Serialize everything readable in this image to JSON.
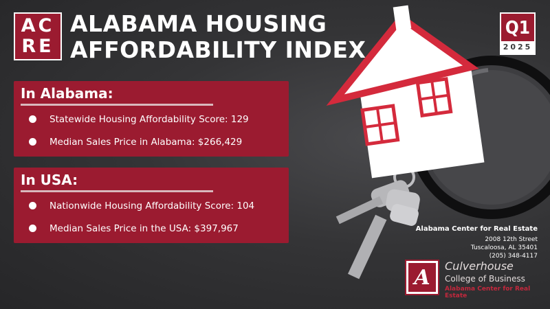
{
  "logo": {
    "line1": "AC",
    "line2": "RE"
  },
  "title": {
    "line1": "ALABAMA HOUSING",
    "line2": "AFFORDABILITY INDEX"
  },
  "badge": {
    "quarter": "Q1",
    "year": "2025"
  },
  "alabama": {
    "heading": "In Alabama:",
    "items": [
      "Statewide Housing Affordability Score: 129",
      "Median Sales Price in Alabama: $266,429"
    ]
  },
  "usa": {
    "heading": "In USA:",
    "items": [
      "Nationwide Housing Affordability Score: 104",
      "Median Sales Price in the USA: $397,967"
    ]
  },
  "contact": {
    "org": "Alabama Center for Real Estate",
    "street": "2008 12th Street",
    "city": "Tuscaloosa, AL 35401",
    "phone": "(205) 348-4117"
  },
  "culverhouse": {
    "mark": "A",
    "name": "Culverhouse",
    "college": "College of Business",
    "center": "Alabama Center for Real Estate"
  },
  "colors": {
    "brand_red": "#9b1b30",
    "background": "#2f2f31",
    "white": "#ffffff"
  },
  "icons": [
    "house-illustration",
    "magnifying-glass",
    "keys"
  ]
}
